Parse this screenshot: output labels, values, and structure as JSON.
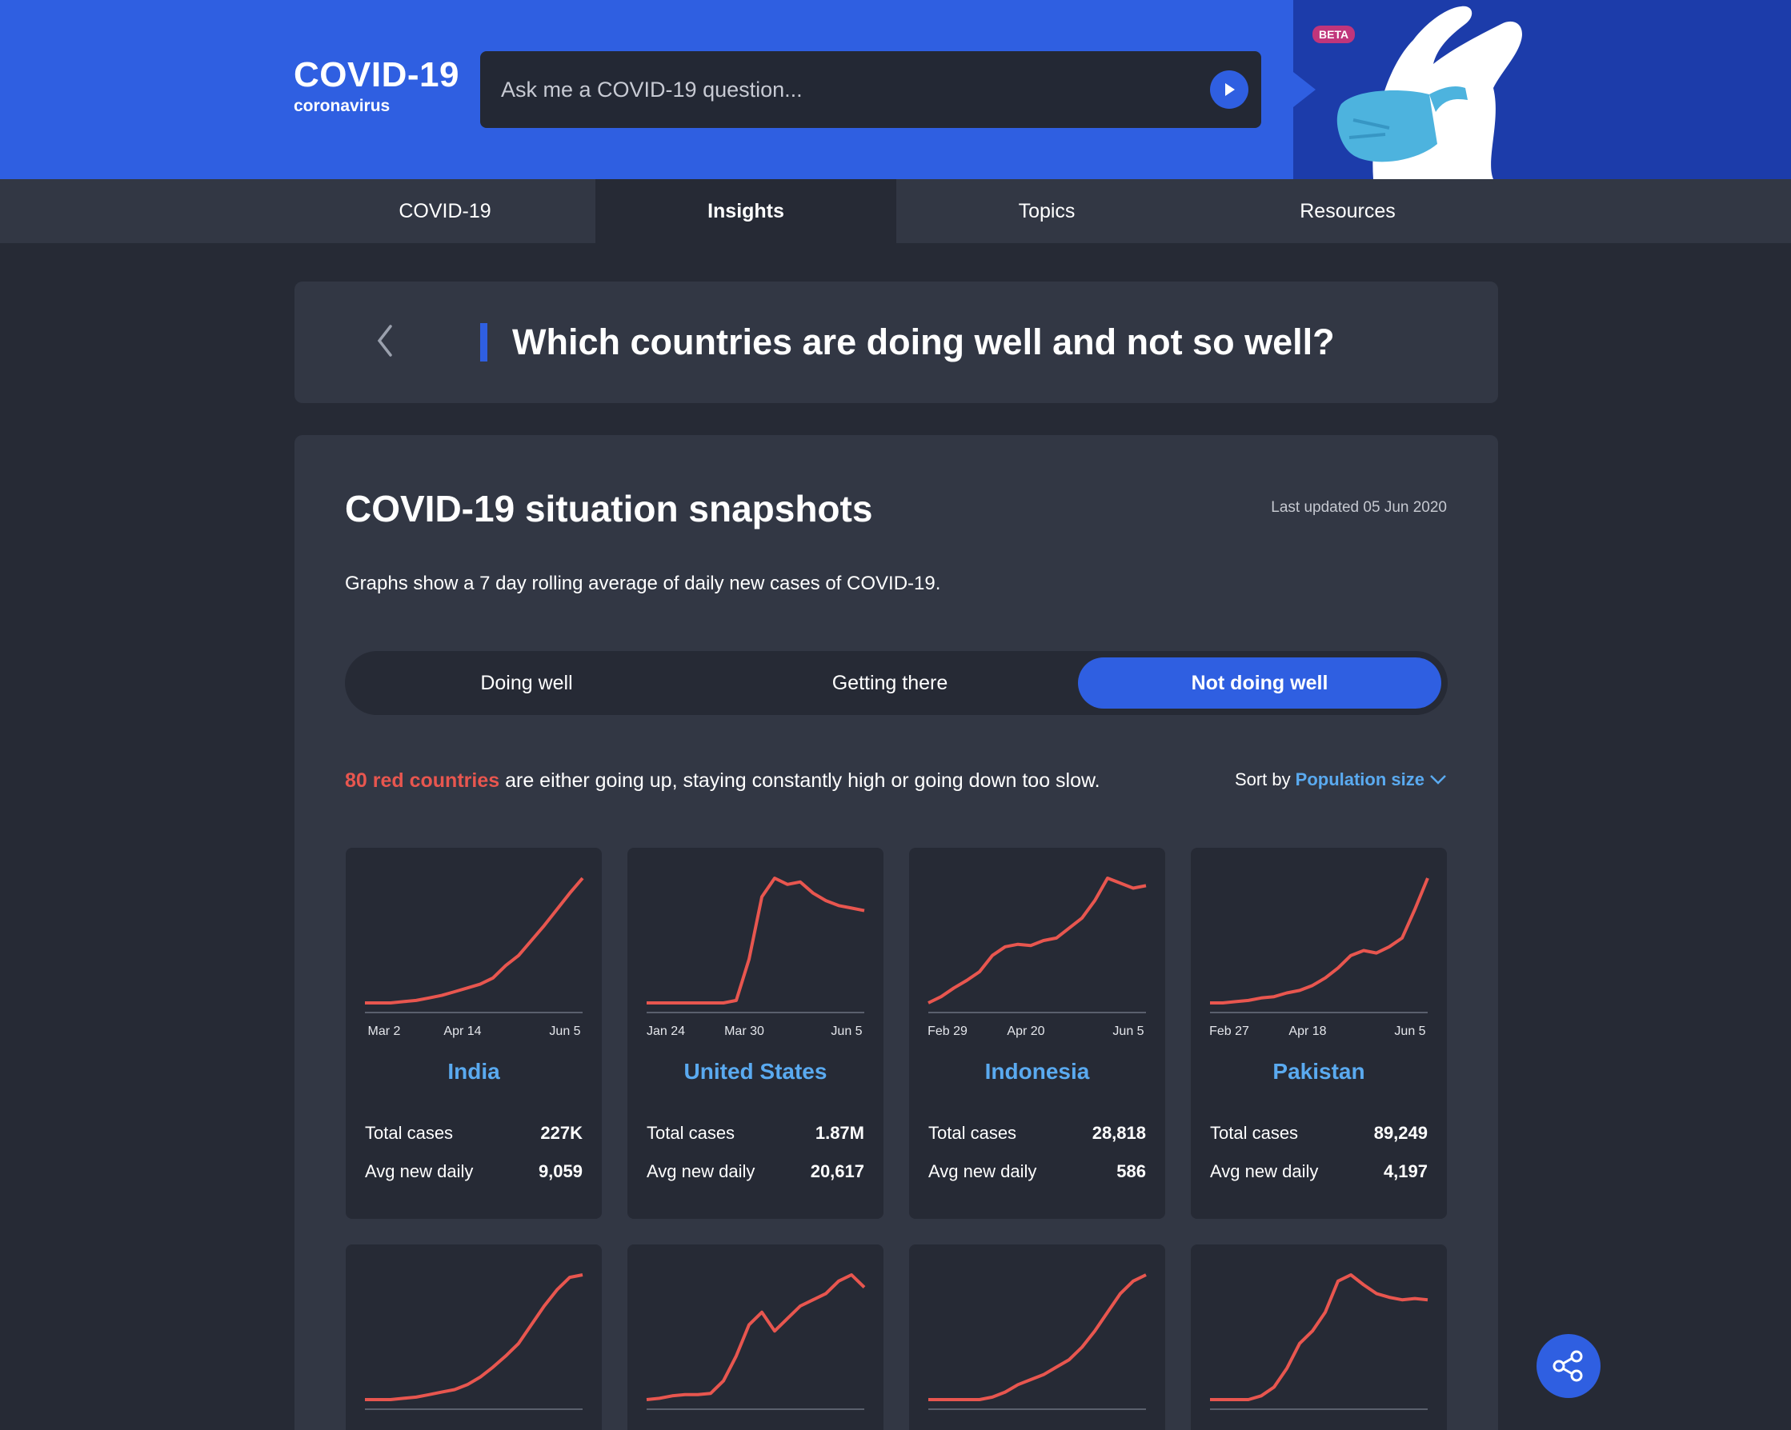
{
  "header": {
    "title": "COVID-19",
    "subtitle": "coronavirus",
    "search_placeholder": "Ask me a COVID-19 question...",
    "beta": "BETA"
  },
  "nav": {
    "tabs": [
      {
        "label": "COVID-19",
        "active": false
      },
      {
        "label": "Insights",
        "active": true
      },
      {
        "label": "Topics",
        "active": false
      },
      {
        "label": "Resources",
        "active": false
      }
    ]
  },
  "question": {
    "title": "Which countries are doing well and not so well?"
  },
  "snapshot": {
    "title": "COVID-19 situation snapshots",
    "updated": "Last updated 05 Jun 2020",
    "description": "Graphs show a 7 day rolling average of daily new cases of COVID-19.",
    "segments": [
      "Doing well",
      "Getting there",
      "Not doing well"
    ],
    "active_segment": "Not doing well",
    "info_highlight": "80 red countries",
    "info_rest": " are either going up, staying constantly high or going down too slow.",
    "sort_label": "Sort by",
    "sort_value": "Population size"
  },
  "stat_labels": {
    "total": "Total cases",
    "avg": "Avg new daily"
  },
  "colors": {
    "accent": "#2f5fe1",
    "line": "#e8564f",
    "link": "#5aaaf0"
  },
  "countries": [
    {
      "name": "India",
      "ticks": [
        "Mar 2",
        "Apr 14",
        "Jun 5"
      ],
      "total": "227K",
      "avg": "9,059",
      "trend": [
        0,
        0,
        0,
        0.01,
        0.02,
        0.04,
        0.06,
        0.09,
        0.12,
        0.15,
        0.2,
        0.3,
        0.38,
        0.5,
        0.62,
        0.75,
        0.88,
        1
      ]
    },
    {
      "name": "United States",
      "ticks": [
        "Jan 24",
        "Mar 30",
        "Jun 5"
      ],
      "total": "1.87M",
      "avg": "20,617",
      "trend": [
        0,
        0,
        0,
        0,
        0,
        0,
        0,
        0.02,
        0.35,
        0.85,
        1,
        0.95,
        0.97,
        0.88,
        0.82,
        0.78,
        0.76,
        0.74
      ]
    },
    {
      "name": "Indonesia",
      "ticks": [
        "Feb 29",
        "Apr 20",
        "Jun 5"
      ],
      "total": "28,818",
      "avg": "586",
      "trend": [
        0,
        0.05,
        0.12,
        0.18,
        0.25,
        0.38,
        0.45,
        0.47,
        0.46,
        0.5,
        0.52,
        0.6,
        0.68,
        0.82,
        1,
        0.96,
        0.92,
        0.94
      ]
    },
    {
      "name": "Pakistan",
      "ticks": [
        "Feb 27",
        "Apr 18",
        "Jun 5"
      ],
      "total": "89,249",
      "avg": "4,197",
      "trend": [
        0,
        0,
        0.01,
        0.02,
        0.04,
        0.05,
        0.08,
        0.1,
        0.14,
        0.2,
        0.28,
        0.38,
        0.42,
        0.4,
        0.45,
        0.52,
        0.75,
        1
      ]
    },
    {
      "name": "",
      "ticks": [],
      "total": "",
      "avg": "",
      "trend": [
        0,
        0,
        0,
        0.01,
        0.02,
        0.04,
        0.06,
        0.08,
        0.12,
        0.18,
        0.26,
        0.35,
        0.45,
        0.6,
        0.75,
        0.88,
        0.98,
        1
      ]
    },
    {
      "name": "",
      "ticks": [],
      "total": "",
      "avg": "",
      "trend": [
        0,
        0.01,
        0.03,
        0.04,
        0.04,
        0.05,
        0.15,
        0.35,
        0.6,
        0.7,
        0.55,
        0.65,
        0.75,
        0.8,
        0.85,
        0.95,
        1,
        0.9
      ]
    },
    {
      "name": "",
      "ticks": [],
      "total": "",
      "avg": "",
      "trend": [
        0,
        0,
        0,
        0,
        0,
        0.02,
        0.06,
        0.12,
        0.16,
        0.2,
        0.26,
        0.32,
        0.42,
        0.55,
        0.7,
        0.85,
        0.95,
        1
      ]
    },
    {
      "name": "",
      "ticks": [],
      "total": "",
      "avg": "",
      "trend": [
        0,
        0,
        0,
        0,
        0.03,
        0.1,
        0.25,
        0.45,
        0.55,
        0.7,
        0.95,
        1,
        0.92,
        0.85,
        0.82,
        0.8,
        0.81,
        0.8
      ]
    }
  ]
}
